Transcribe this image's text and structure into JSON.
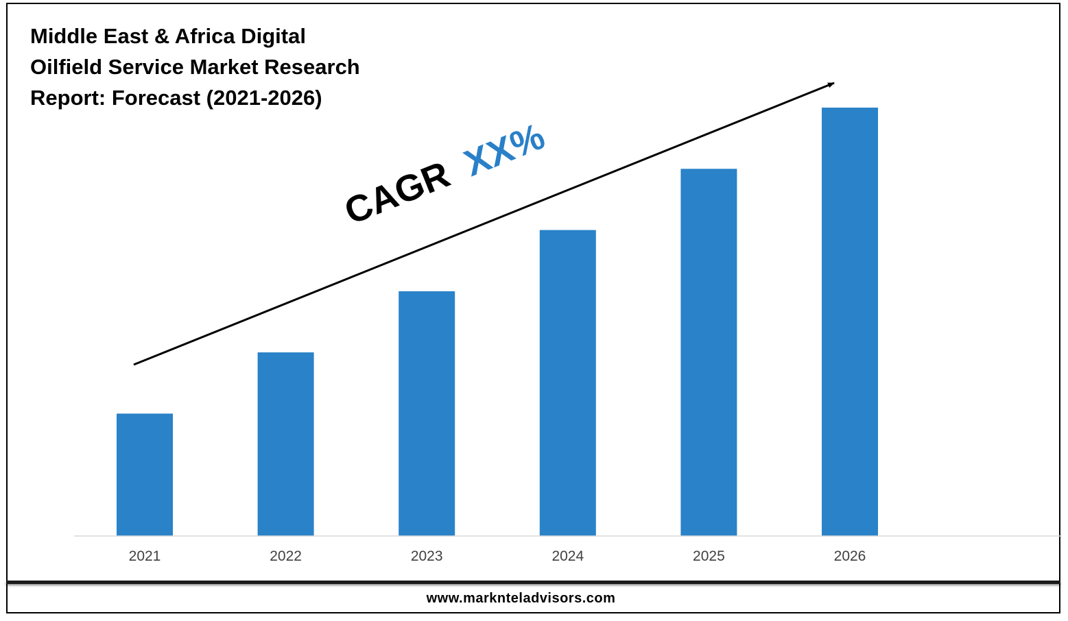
{
  "title_lines": [
    "Middle East & Africa Digital",
    "Oilfield Service Market Research",
    "Report: Forecast (2021-2026)"
  ],
  "annotation": {
    "prefix": "CAGR",
    "value": "XX%",
    "value_color": "#2a80c8"
  },
  "footer": {
    "url": "www.marknteladvisors.com"
  },
  "colors": {
    "bar": "#2a82c8",
    "axis": "#d9d9d9",
    "tick_label": "#404040",
    "arrow": "#000000"
  },
  "chart_data": {
    "type": "bar",
    "categories": [
      "2021",
      "2022",
      "2023",
      "2024",
      "2025",
      "2026"
    ],
    "values": [
      1,
      1.5,
      2,
      2.5,
      3,
      3.5
    ],
    "title": "Middle East & Africa Digital Oilfield Service Market Research Report: Forecast (2021-2026)",
    "xlabel": "",
    "ylabel": "",
    "ylim": [
      0,
      3.5
    ],
    "grid": false,
    "legend": "none",
    "annotations": [
      "CAGR XX%"
    ]
  }
}
